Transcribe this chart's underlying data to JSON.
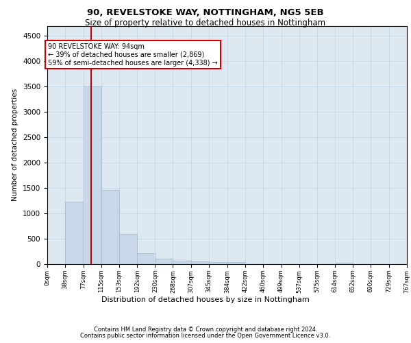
{
  "title1": "90, REVELSTOKE WAY, NOTTINGHAM, NG5 5EB",
  "title2": "Size of property relative to detached houses in Nottingham",
  "xlabel": "Distribution of detached houses by size in Nottingham",
  "ylabel": "Number of detached properties",
  "footnote1": "Contains HM Land Registry data © Crown copyright and database right 2024.",
  "footnote2": "Contains public sector information licensed under the Open Government Licence v3.0.",
  "property_size": 94,
  "property_label": "90 REVELSTOKE WAY: 94sqm",
  "pct_smaller": 39,
  "n_smaller": 2869,
  "pct_larger_semi": 59,
  "n_larger_semi": 4338,
  "bar_color": "#c8d8e8",
  "bar_edge_color": "#a0b8cc",
  "vline_color": "#cc0000",
  "annotation_box_color": "#cc0000",
  "ylim": [
    0,
    4700
  ],
  "yticks": [
    0,
    500,
    1000,
    1500,
    2000,
    2500,
    3000,
    3500,
    4000,
    4500
  ],
  "bin_edges": [
    0,
    38,
    77,
    115,
    153,
    192,
    230,
    268,
    307,
    345,
    384,
    422,
    460,
    499,
    537,
    575,
    614,
    652,
    690,
    729,
    767
  ],
  "bar_heights": [
    5,
    1230,
    3500,
    1460,
    590,
    220,
    110,
    70,
    60,
    40,
    40,
    0,
    0,
    0,
    0,
    0,
    30,
    0,
    0,
    0
  ]
}
